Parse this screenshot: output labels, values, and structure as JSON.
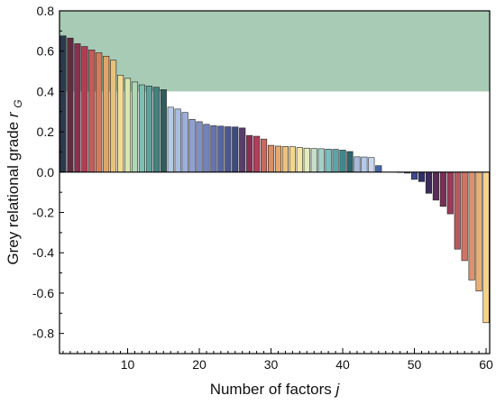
{
  "chart_data": {
    "type": "bar",
    "xlabel": "Number of factors",
    "xlabel_var": "j",
    "ylabel": "Grey relational grade",
    "ylabel_var": "r",
    "ylabel_sub": "G",
    "xlim": [
      0.5,
      60.5
    ],
    "ylim": [
      -0.9,
      0.8
    ],
    "x_ticks": [
      10,
      20,
      30,
      40,
      50,
      60
    ],
    "y_ticks": [
      0.8,
      0.6,
      0.4,
      0.2,
      0.0,
      -0.2,
      -0.4,
      -0.6,
      -0.8
    ],
    "y_tick_labels": [
      "0.8",
      "0.6",
      "0.4",
      "0.2",
      "0.0",
      "-0.2",
      "-0.4",
      "-0.6",
      "-0.8"
    ],
    "highlight_band": {
      "y_from": 0.4,
      "y_to": 0.8,
      "color": "#a8cbb5"
    },
    "grid": false,
    "x": [
      1,
      2,
      3,
      4,
      5,
      6,
      7,
      8,
      9,
      10,
      11,
      12,
      13,
      14,
      15,
      16,
      17,
      18,
      19,
      20,
      21,
      22,
      23,
      24,
      25,
      26,
      27,
      28,
      29,
      30,
      31,
      32,
      33,
      34,
      35,
      36,
      37,
      38,
      39,
      40,
      41,
      42,
      43,
      44,
      45,
      46,
      47,
      48,
      49,
      50,
      51,
      52,
      53,
      54,
      55,
      56,
      57,
      58,
      59,
      60
    ],
    "values": [
      0.676,
      0.665,
      0.637,
      0.623,
      0.606,
      0.592,
      0.575,
      0.555,
      0.481,
      0.465,
      0.447,
      0.433,
      0.427,
      0.421,
      0.409,
      0.322,
      0.313,
      0.296,
      0.262,
      0.25,
      0.237,
      0.23,
      0.228,
      0.225,
      0.224,
      0.219,
      0.182,
      0.178,
      0.164,
      0.133,
      0.129,
      0.127,
      0.126,
      0.122,
      0.119,
      0.117,
      0.116,
      0.114,
      0.113,
      0.109,
      0.102,
      0.076,
      0.075,
      0.072,
      0.032,
      0,
      0,
      -0.002,
      -0.005,
      -0.036,
      -0.047,
      -0.105,
      -0.139,
      -0.17,
      -0.207,
      -0.382,
      -0.439,
      -0.535,
      -0.59,
      -0.747
    ],
    "colors": [
      "#2b3a4c",
      "#5e2e40",
      "#8c2f4f",
      "#b03d54",
      "#c45b58",
      "#d27c5c",
      "#dea569",
      "#e8c27b",
      "#f2dc95",
      "#d9e6ad",
      "#b0d7b6",
      "#7fbfb0",
      "#5ea19a",
      "#45827f",
      "#2f5e5c",
      "#b5cbe4",
      "#a8bde0",
      "#9cafd8",
      "#8e9fd0",
      "#8190c5",
      "#7482ba",
      "#6673ad",
      "#58669f",
      "#4a5890",
      "#3d4b80",
      "#5a3e6a",
      "#8a3055",
      "#b13e5a",
      "#c96a61",
      "#da8f67",
      "#e5a96f",
      "#ecc27d",
      "#f2d78d",
      "#f4e6a5",
      "#e2ebbc",
      "#c5e0c6",
      "#a3d1c9",
      "#7dbebd",
      "#5ca4a6",
      "#43868b",
      "#2f656d",
      "#a6bbdc",
      "#b6c9e6",
      "#c8d7ee",
      "#4567a6",
      "#ffffff",
      "#ffffff",
      "#a9b6d6",
      "#5969a8",
      "#3f4a8c",
      "#302f6a",
      "#3d2a5c",
      "#5a2c56",
      "#7a2f55",
      "#9a3c59",
      "#b85a5f",
      "#cc7565",
      "#dc926d",
      "#e8b077",
      "#f5d48a"
    ]
  }
}
